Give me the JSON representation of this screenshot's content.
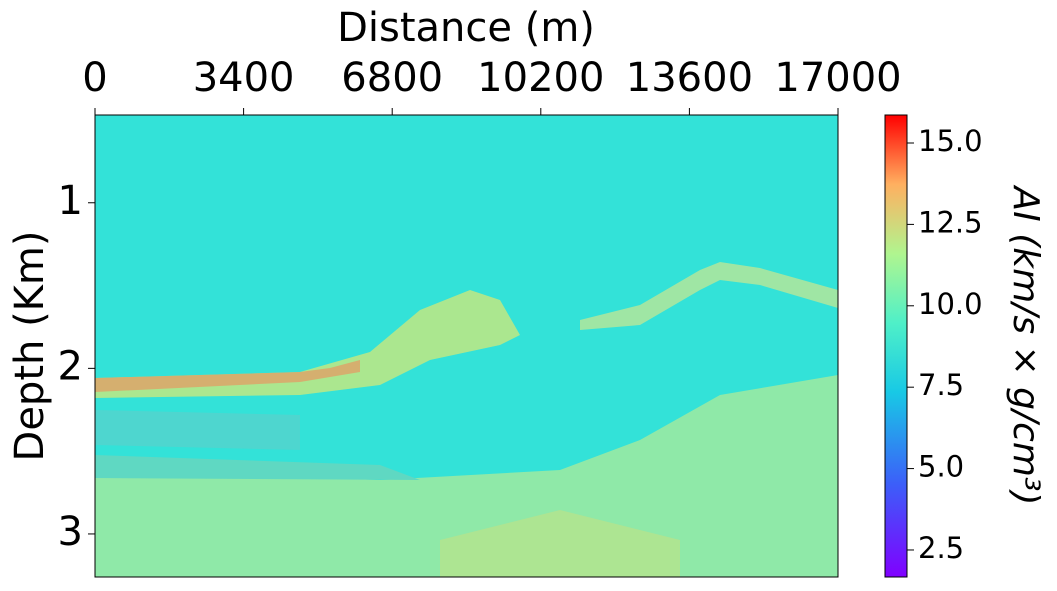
{
  "chart_data": {
    "type": "heatmap",
    "x_label": "Distance (m)",
    "y_label": "Depth (Km)",
    "xlim": [
      0,
      17000
    ],
    "xticks": [
      0,
      3400,
      6800,
      10200,
      13600,
      17000
    ],
    "ylim": [
      0.47,
      3.26
    ],
    "yticks": [
      1,
      2,
      3
    ],
    "y_inverted": true,
    "x_axis_position": "top",
    "colormap": "rainbow",
    "colorbar": {
      "label": "AI (km/s × g/cm³)",
      "lim": [
        1.67,
        15.86
      ],
      "ticks": [
        2.5,
        {
          "value": 5,
          "label": "5.0"
        },
        7.5,
        {
          "value": 10,
          "label": "10.0"
        },
        12.5,
        {
          "value": 15,
          "label": "15.0"
        }
      ]
    }
  }
}
